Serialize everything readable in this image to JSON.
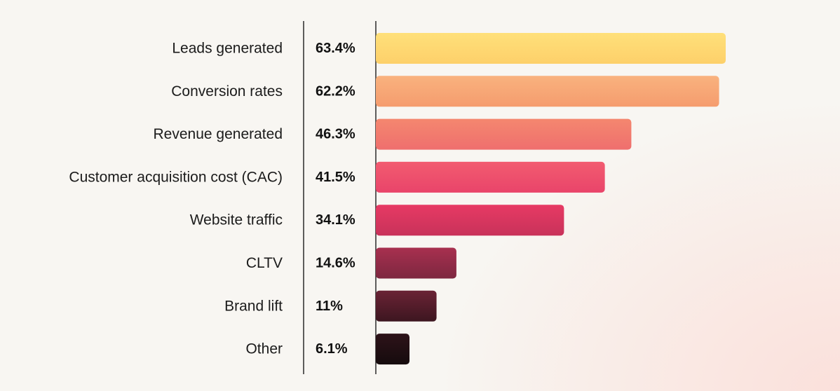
{
  "chart_data": {
    "type": "bar",
    "orientation": "horizontal",
    "title": "",
    "xlabel": "",
    "ylabel": "",
    "xlim": [
      0,
      63.4
    ],
    "grid": false,
    "categories": [
      "Leads generated",
      "Conversion rates",
      "Revenue generated",
      "Customer acquisition cost (CAC)",
      "Website traffic",
      "CLTV",
      "Brand lift",
      "Other"
    ],
    "values": [
      63.4,
      62.2,
      46.3,
      41.5,
      34.1,
      14.6,
      11,
      6.1
    ],
    "value_labels": [
      "63.4%",
      "62.2%",
      "46.3%",
      "41.5%",
      "34.1%",
      "14.6%",
      "11%",
      "6.1%"
    ],
    "bar_colors": [
      [
        "#ffe07a",
        "#fdd06a"
      ],
      [
        "#f9b27e",
        "#f59c6e"
      ],
      [
        "#f4876f",
        "#ef6f6e"
      ],
      [
        "#f25c70",
        "#e9446a"
      ],
      [
        "#e73a64",
        "#c8325a"
      ],
      [
        "#a8304f",
        "#7d2740"
      ],
      [
        "#6a2335",
        "#3d1620"
      ],
      [
        "#2e1319",
        "#150b0d"
      ]
    ]
  }
}
